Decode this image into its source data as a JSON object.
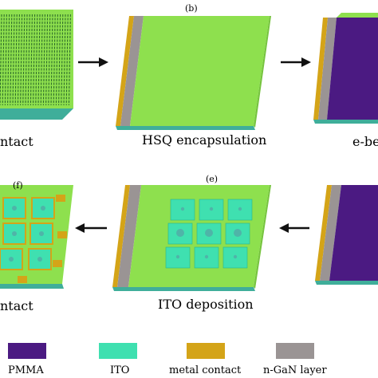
{
  "panels": [
    {
      "id": "a",
      "label": "",
      "caption": "ntact"
    },
    {
      "id": "b",
      "label": "(b)",
      "caption": "HSQ encapsulation"
    },
    {
      "id": "c",
      "label": "",
      "caption": "e-be"
    },
    {
      "id": "d",
      "label": "",
      "caption": ""
    },
    {
      "id": "e",
      "label": "(e)",
      "caption": "ITO deposition"
    },
    {
      "id": "f",
      "label": "(f)",
      "caption": "ntact"
    }
  ],
  "legend": [
    {
      "name": "PMMA",
      "color": "#4b1a82"
    },
    {
      "name": "ITO",
      "color": "#3fe0b0"
    },
    {
      "name": "metal contact",
      "color": "#d4a418"
    },
    {
      "name": "n-GaN layer",
      "color": "#9a9494"
    }
  ],
  "colors": {
    "hsq": "#8ee04e",
    "hsq_edge": "#76c43e",
    "gan": "#9a9494",
    "metal": "#d4a418",
    "pmma": "#4b1a82",
    "ito": "#3fe0b0",
    "nanowire": "#2f6e2a",
    "arrow": "#111111"
  }
}
